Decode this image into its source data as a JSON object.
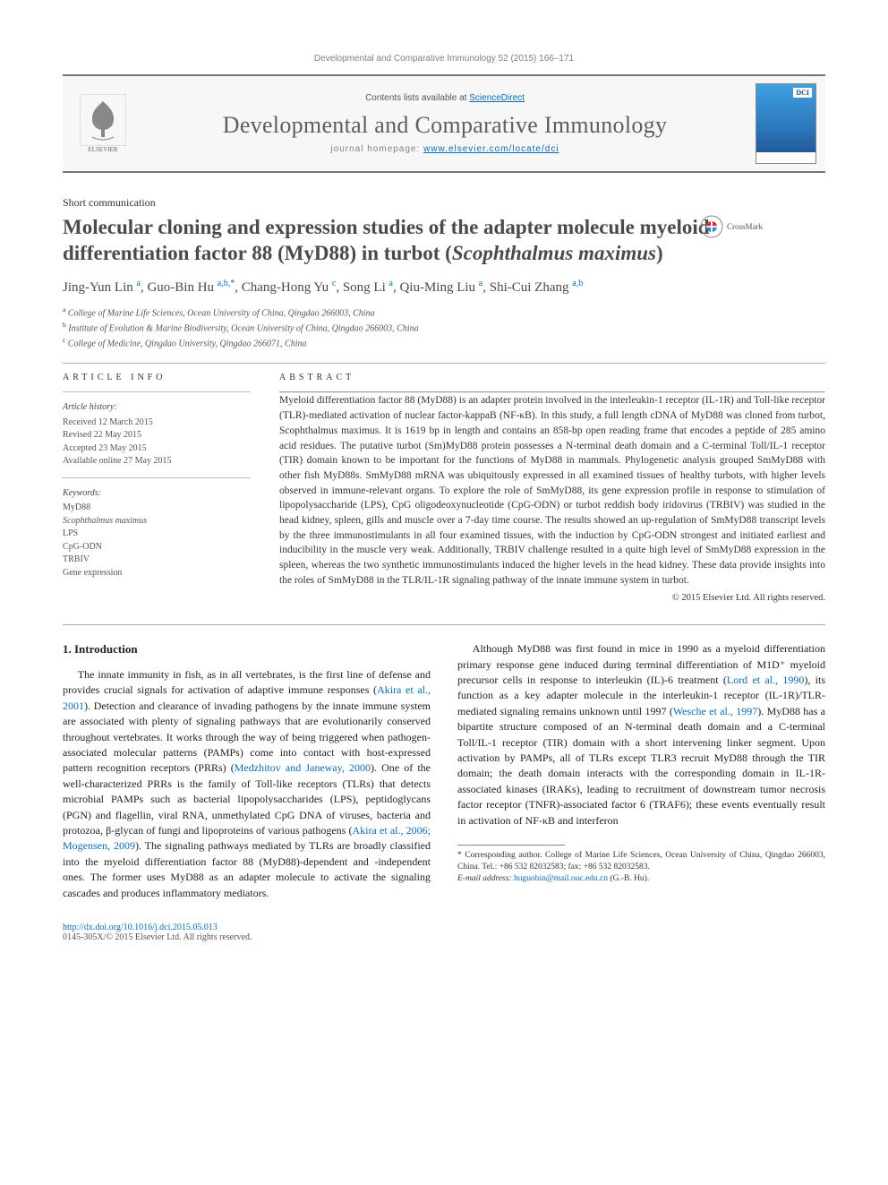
{
  "journal_ref": "Developmental and Comparative Immunology 52 (2015) 166–171",
  "banner": {
    "contents_prefix": "Contents lists available at ",
    "contents_link": "ScienceDirect",
    "journal_title": "Developmental and Comparative Immunology",
    "homepage_prefix": "journal homepage: ",
    "homepage_link": "www.elsevier.com/locate/dci",
    "publisher": "ELSEVIER",
    "cover_badge": "DCI"
  },
  "article": {
    "section_label": "Short communication",
    "title_prefix": "Molecular cloning and expression studies of the adapter molecule myeloid differentiation factor 88 (MyD88) in turbot (",
    "title_italic": "Scophthalmus maximus",
    "title_suffix": ")",
    "crossmark_label": "CrossMark",
    "authors_html": "Jing-Yun Lin <sup>a</sup>, Guo-Bin Hu <sup>a,b,*</sup>, Chang-Hong Yu <sup>c</sup>, Song Li <sup>a</sup>, Qiu-Ming Liu <sup>a</sup>, Shi-Cui Zhang <sup>a,b</sup>",
    "affiliations": [
      {
        "sup": "a",
        "text": "College of Marine Life Sciences, Ocean University of China, Qingdao 266003, China"
      },
      {
        "sup": "b",
        "text": "Institute of Evolution & Marine Biodiversity, Ocean University of China, Qingdao 266003, China"
      },
      {
        "sup": "c",
        "text": "College of Medicine, Qingdao University, Qingdao 266071, China"
      }
    ]
  },
  "info": {
    "heading": "ARTICLE INFO",
    "history_label": "Article history:",
    "history": [
      "Received 12 March 2015",
      "Revised 22 May 2015",
      "Accepted 23 May 2015",
      "Available online 27 May 2015"
    ],
    "keywords_label": "Keywords:",
    "keywords": [
      "MyD88",
      "Scophthalmus maximus",
      "LPS",
      "CpG-ODN",
      "TRBIV",
      "Gene expression"
    ]
  },
  "abstract": {
    "heading": "ABSTRACT",
    "text": "Myeloid differentiation factor 88 (MyD88) is an adapter protein involved in the interleukin-1 receptor (IL-1R) and Toll-like receptor (TLR)-mediated activation of nuclear factor-kappaB (NF-κB). In this study, a full length cDNA of MyD88 was cloned from turbot, Scophthalmus maximus. It is 1619 bp in length and contains an 858-bp open reading frame that encodes a peptide of 285 amino acid residues. The putative turbot (Sm)MyD88 protein possesses a N-terminal death domain and a C-terminal Toll/IL-1 receptor (TIR) domain known to be important for the functions of MyD88 in mammals. Phylogenetic analysis grouped SmMyD88 with other fish MyD88s. SmMyD88 mRNA was ubiquitously expressed in all examined tissues of healthy turbots, with higher levels observed in immune-relevant organs. To explore the role of SmMyD88, its gene expression profile in response to stimulation of lipopolysaccharide (LPS), CpG oligodeoxynucleotide (CpG-ODN) or turbot reddish body iridovirus (TRBIV) was studied in the head kidney, spleen, gills and muscle over a 7-day time course. The results showed an up-regulation of SmMyD88 transcript levels by the three immunostimulants in all four examined tissues, with the induction by CpG-ODN strongest and initiated earliest and inducibility in the muscle very weak. Additionally, TRBIV challenge resulted in a quite high level of SmMyD88 expression in the spleen, whereas the two synthetic immunostimulants induced the higher levels in the head kidney. These data provide insights into the roles of SmMyD88 in the TLR/IL-1R signaling pathway of the innate immune system in turbot.",
    "copyright": "© 2015 Elsevier Ltd. All rights reserved."
  },
  "body": {
    "intro_heading": "1. Introduction",
    "p1_a": "The innate immunity in fish, as in all vertebrates, is the first line of defense and provides crucial signals for activation of adaptive immune responses (",
    "p1_cite1": "Akira et al., 2001",
    "p1_b": "). Detection and clearance of invading pathogens by the innate immune system are associated with plenty of signaling pathways that are evolutionarily conserved throughout vertebrates. It works through the way of being triggered when pathogen-associated molecular patterns (PAMPs) come into contact with host-expressed pattern recognition receptors (PRRs) (",
    "p1_cite2": "Medzhitov and Janeway, 2000",
    "p1_c": "). One of the well-characterized PRRs is the family of Toll-like receptors (TLRs) that detects microbial PAMPs such as bacterial lipopolysaccharides (LPS), peptidoglycans (PGN) and flagellin, viral RNA, unmethylated CpG DNA of viruses, bacteria and protozoa, β-glycan of fungi and lipoproteins of various pathogens (",
    "p1_cite3": "Akira et al., 2006; Mogensen, 2009",
    "p1_d": "). The signaling pathways mediated by TLRs are broadly classified into the myeloid differentiation factor 88 (MyD88)-dependent and -independent ones. The former uses MyD88 as an adapter molecule to activate the signaling cascades and produces inflammatory mediators.",
    "p2_a": "Although MyD88 was first found in mice in 1990 as a myeloid differentiation primary response gene induced during terminal differentiation of M1D⁺ myeloid precursor cells in response to interleukin (IL)-6 treatment (",
    "p2_cite1": "Lord et al., 1990",
    "p2_b": "), its function as a key adapter molecule in the interleukin-1 receptor (IL-1R)/TLR-mediated signaling remains unknown until 1997 (",
    "p2_cite2": "Wesche et al., 1997",
    "p2_c": "). MyD88 has a bipartite structure composed of an N-terminal death domain and a C-terminal Toll/IL-1 receptor (TIR) domain with a short intervening linker segment. Upon activation by PAMPs, all of TLRs except TLR3 recruit MyD88 through the TIR domain; the death domain interacts with the corresponding domain in IL-1R-associated kinases (IRAKs), leading to recruitment of downstream tumor necrosis factor receptor (TNFR)-associated factor 6 (TRAF6); these events eventually result in activation of NF-κB and interferon"
  },
  "footnotes": {
    "corresponding": "* Corresponding author. College of Marine Life Sciences, Ocean University of China, Qingdao 266003, China. Tel.: +86 532 82032583; fax: +86 532 82032583.",
    "email_label": "E-mail address: ",
    "email": "huguobin@mail.ouc.edu.cn",
    "email_suffix": " (G.-B. Hu)."
  },
  "footer": {
    "doi": "http://dx.doi.org/10.1016/j.dci.2015.05.013",
    "issn_line": "0145-305X/© 2015 Elsevier Ltd. All rights reserved."
  },
  "colors": {
    "link": "#0a6bb5",
    "rule": "#747474",
    "text": "#333333",
    "muted": "#818181"
  }
}
